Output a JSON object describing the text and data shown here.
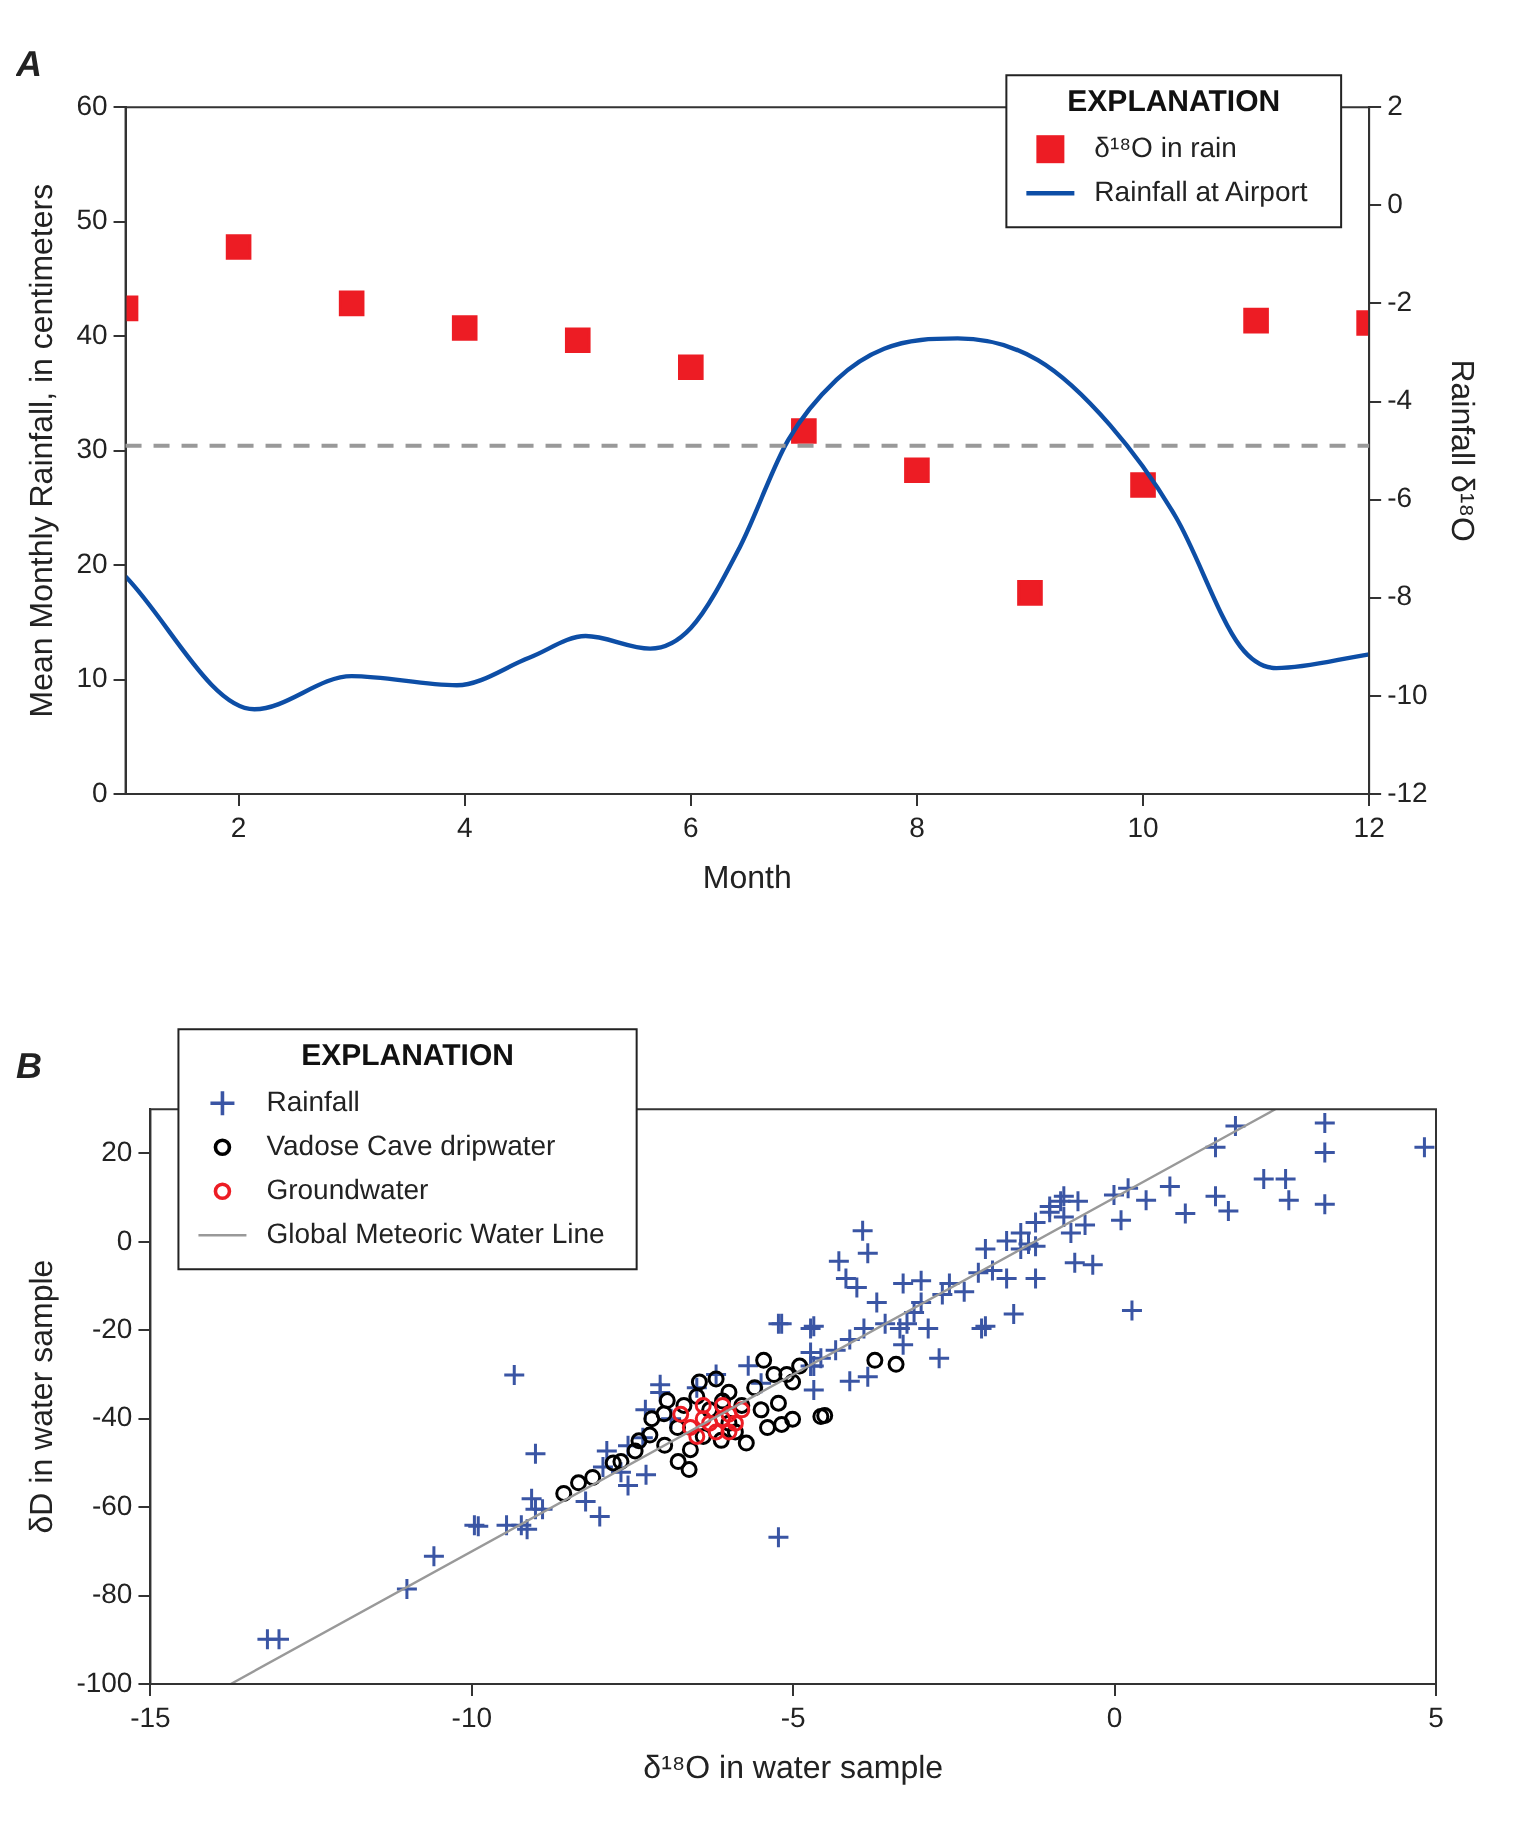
{
  "chart_data": [
    {
      "type": "line",
      "title": "A",
      "xlabel": "Month",
      "ylabel": "Mean Monthly Rainfall, in centimeters",
      "y2label": "Rainfall δ¹⁸O",
      "legend_title": "EXPLANATION",
      "legend": "top right",
      "grid": false,
      "xlim": [
        1,
        12
      ],
      "xticks": [
        2,
        4,
        6,
        8,
        10,
        12
      ],
      "ylim": [
        0,
        60
      ],
      "yticks": [
        0,
        10,
        20,
        30,
        40,
        50,
        60
      ],
      "y2lim": [
        -12,
        2
      ],
      "y2ticks": [
        -12,
        -10,
        -8,
        -6,
        -4,
        -2,
        0,
        2
      ],
      "series": [
        {
          "name": "δ¹⁸O in rain",
          "type": "scatter",
          "axis": "y2",
          "color": "#ed1c24",
          "marker": "square",
          "x": [
            1,
            2,
            3,
            4,
            5,
            6,
            7,
            8,
            9,
            10,
            11,
            12
          ],
          "values": [
            -2.1,
            -0.85,
            -2.0,
            -2.5,
            -2.75,
            -3.3,
            -4.6,
            -5.4,
            -7.9,
            -5.7,
            -2.35,
            -2.4
          ]
        },
        {
          "name": "Rainfall at Airport",
          "color": "#0d4ea6",
          "marker": "none",
          "x": [
            1,
            2.14,
            3,
            3.93,
            4.57,
            5.07,
            5.64,
            6,
            6.43,
            6.86,
            7.29,
            7.71,
            8.36,
            9.07,
            9.71,
            10.29,
            10.86,
            11.18,
            12
          ],
          "values": [
            19.0,
            7.4,
            10.3,
            9.5,
            11.9,
            13.8,
            12.7,
            14.5,
            21.5,
            30.9,
            36.2,
            38.9,
            39.8,
            37.9,
            32.2,
            24.2,
            12.9,
            11.0,
            12.2
          ]
        }
      ],
      "ref_lines": [
        {
          "axis": "y2",
          "value": -4.9,
          "color": "#999999",
          "line_style": "dashed"
        }
      ]
    },
    {
      "type": "scatter",
      "title": "B",
      "xlabel": "δ¹⁸O in water sample",
      "ylabel": "δD in water sample",
      "legend_title": "EXPLANATION",
      "legend": "top left",
      "grid": false,
      "xlim": [
        -15,
        5
      ],
      "xticks": [
        -15,
        -10,
        -5,
        0,
        5
      ],
      "ylim": [
        -100,
        30
      ],
      "yticks": [
        -100,
        -80,
        -60,
        -40,
        -20,
        0,
        20
      ],
      "series": [
        {
          "name": "Rainfall",
          "color": "#3a55a4",
          "marker": "cross",
          "x": [
            -13.18,
            -13.0,
            -11.01,
            -10.59,
            -9.96,
            -9.9,
            -9.46,
            -9.23,
            -9.14,
            -9.34,
            -9.01,
            -9.07,
            -9.01,
            -8.9,
            -8.23,
            -8.01,
            -7.9,
            -7.68,
            -7.57,
            -7.29,
            -7.07,
            -7.07,
            -5.23,
            -5.23,
            -4.73,
            -4.73,
            -4.73,
            -7.34,
            -7.57,
            -7.96,
            1.88,
            3.27,
            3.27,
            4.82,
            1.57,
            2.32,
            2.66,
            0.86,
            1.57,
            1.77,
            1.1,
            2.71,
            3.27,
            0.27,
            0.1,
            0.21,
            0.49,
            -0.01,
            -0.79,
            -0.57,
            -1.01,
            -0.46,
            -0.68,
            -0.79,
            -1.34,
            -1.46,
            -1.68,
            -1.23,
            -2.01,
            -1.9,
            -2.12,
            -1.68,
            -1.23,
            -0.62,
            -0.34,
            -3.92,
            -3.84,
            -4.29,
            -4.18,
            -4.01,
            -3.7,
            -3.29,
            -3.01,
            -2.57,
            -2.34,
            -3.01,
            -2.68,
            -3.12,
            -3.23,
            -3.57,
            -3.9,
            -4.12,
            -4.34,
            -4.57,
            -4.68,
            -4.68,
            -4.12,
            -3.84,
            -2.73,
            -2.9,
            -2.07,
            -2.01,
            -1.57,
            -4.68,
            -5.18,
            -3.34,
            -3.29,
            -1.46,
            -1.23,
            -1.01,
            -0.84,
            -6.2,
            -5.7,
            -5.5,
            -6.5,
            -7.3,
            -6.9
          ],
          "values": [
            -89.9,
            -89.9,
            -78.5,
            -71.1,
            -64.1,
            -64.3,
            -64.1,
            -64.1,
            -65,
            -30.1,
            -47.9,
            -58.1,
            -60.5,
            -60.5,
            -58.7,
            -62.1,
            -47.3,
            -52.1,
            -55.1,
            -52.7,
            -32.3,
            -34.1,
            -66.8,
            -18.5,
            -19.6,
            -25.0,
            -28.1,
            -44.3,
            -46.1,
            -50.9,
            26.2,
            26.9,
            20.2,
            21.4,
            21.4,
            14.2,
            14.2,
            12.5,
            10.3,
            7.0,
            6.4,
            9.4,
            8.5,
            -15.5,
            4.9,
            12.1,
            9.4,
            10.6,
            10.3,
            9.2,
            6.7,
            3.8,
            2.0,
            5.6,
            -0.5,
            -1.6,
            0.2,
            -1.0,
            -1.6,
            -6.5,
            -7.0,
            -8.3,
            -8.3,
            -4.7,
            -5.2,
            2.5,
            -2.6,
            -4.4,
            -8.3,
            -10.3,
            -13.7,
            -9.4,
            -8.8,
            -9.4,
            -11.3,
            -13.7,
            -11.9,
            -16.0,
            -18.5,
            -18.5,
            -19.6,
            -22.1,
            -24.5,
            -26.3,
            -28.1,
            -33.5,
            -31.5,
            -30.5,
            -26.3,
            -19.6,
            -19.6,
            -19.1,
            -16.3,
            -19.1,
            -18.5,
            -19.6,
            -23.3,
            2.0,
            4.4,
            8.0,
            9.2,
            -30,
            -28,
            -32,
            -33,
            -38,
            -40
          ]
        },
        {
          "name": "Vadose Cave dripwater",
          "color": "#000000",
          "marker": "circle",
          "x": [
            -8.57,
            -8.34,
            -8.12,
            -7.68,
            -7.01,
            -6.62,
            -6.79,
            -6.12,
            -5.73,
            -5.18,
            -5.46,
            -4.9,
            -6.46,
            -6.96,
            -7.23,
            -7.46,
            -4.57,
            -5.1,
            -5.01,
            -5.23,
            -5.01,
            -4.51,
            -3.73,
            -3.4,
            -6.5,
            -6.3,
            -6.0,
            -5.8,
            -5.6,
            -6.8,
            -6.4,
            -7.0,
            -7.4,
            -7.8,
            -6.0,
            -5.5,
            -5.3,
            -6.2,
            -6.7,
            -7.2,
            -5.9,
            -6.6,
            -5.4,
            -6.1
          ],
          "values": [
            -56.9,
            -54.5,
            -53.3,
            -49.7,
            -38.9,
            -51.5,
            -49.7,
            -44.9,
            -45.5,
            -41.3,
            -26.8,
            -28.1,
            -31.7,
            -35.9,
            -43.7,
            -47.3,
            -39.5,
            -30.0,
            -31.7,
            -36.5,
            -40.1,
            -39.3,
            -26.8,
            -27.7,
            -35,
            -38,
            -34,
            -37,
            -33,
            -42,
            -44,
            -46,
            -45,
            -50,
            -41,
            -38,
            -30,
            -31,
            -37,
            -40,
            -43,
            -47,
            -42,
            -36
          ]
        },
        {
          "name": "Groundwater",
          "color": "#ed1c24",
          "marker": "circle",
          "x": [
            -6.6,
            -6.4,
            -6.75,
            -6.1,
            -6.0,
            -5.9,
            -6.2,
            -6.5,
            -6.0,
            -6.3,
            -6.1,
            -5.8,
            -6.4
          ],
          "values": [
            -42,
            -40,
            -39,
            -37,
            -39,
            -41,
            -43,
            -44,
            -43,
            -41,
            -40,
            -38,
            -37
          ]
        },
        {
          "name": "Global Meteoric Water Line",
          "type": "line",
          "color": "#999999",
          "marker": "none",
          "x": [
            -13.75,
            2.5
          ],
          "values": [
            -100,
            30
          ]
        }
      ]
    }
  ]
}
